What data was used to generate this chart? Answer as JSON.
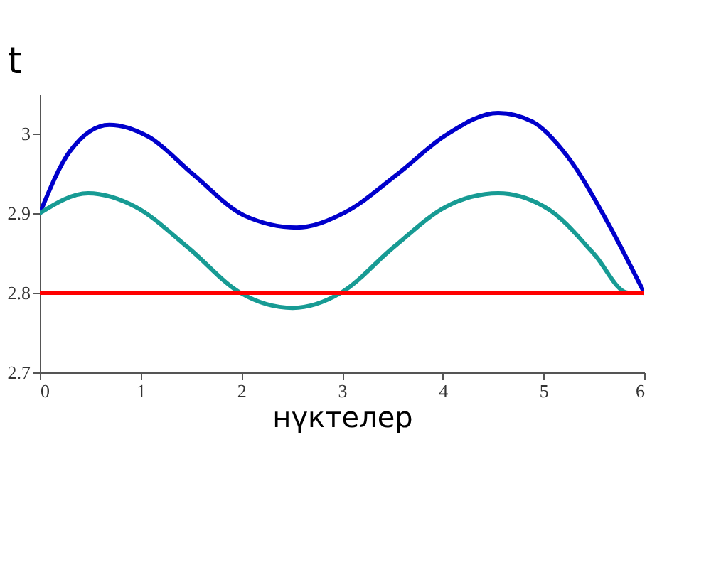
{
  "chart_data": {
    "type": "line",
    "xlabel": "нүктелер",
    "ylabel": "t",
    "xlim": [
      0,
      6
    ],
    "xticks": [
      0,
      1,
      2,
      3,
      4,
      5,
      6
    ],
    "ylim": [
      2.7,
      3.05
    ],
    "yticks": [
      2.7,
      2.8,
      2.9,
      3
    ],
    "grid": false,
    "marker": "none",
    "line_style": "solid",
    "series": [
      {
        "color": "#0000cc",
        "x": [
          0,
          0.3,
          0.69,
          1.08,
          1.52,
          2.03,
          2.55,
          3.03,
          3.55,
          4.03,
          4.55,
          4.89,
          5.24,
          5.63,
          6
        ],
        "values": [
          2.9,
          2.978,
          3.011,
          2.996,
          2.949,
          2.897,
          2.882,
          2.901,
          2.949,
          2.998,
          3.026,
          3.015,
          2.971,
          2.89,
          2.8
        ]
      },
      {
        "color": "#179b94",
        "x": [
          0,
          0.48,
          0.95,
          1.47,
          1.99,
          2.51,
          2.99,
          3.51,
          4.03,
          4.55,
          5.06,
          5.5,
          5.84,
          6
        ],
        "values": [
          2.9,
          2.925,
          2.908,
          2.857,
          2.8,
          2.781,
          2.8,
          2.857,
          2.908,
          2.925,
          2.904,
          2.849,
          2.8,
          2.8
        ]
      },
      {
        "color": "#ff0000",
        "x": [
          0,
          6
        ],
        "values": [
          2.8,
          2.8
        ]
      }
    ]
  }
}
